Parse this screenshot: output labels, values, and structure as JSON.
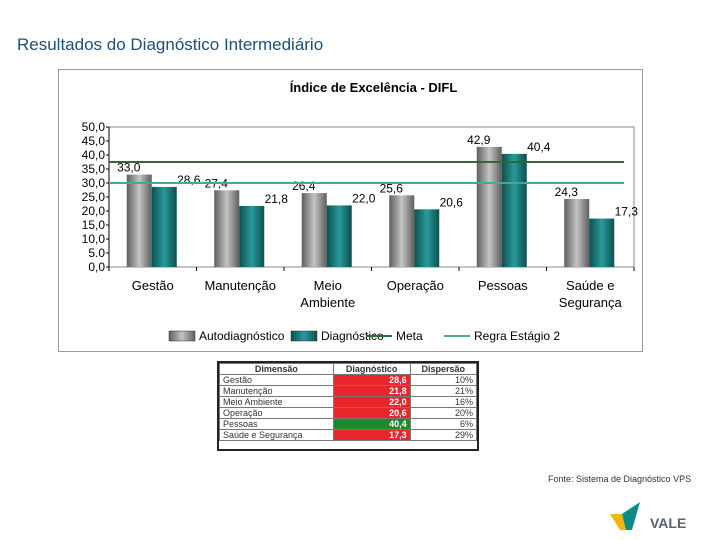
{
  "slide": {
    "title": "Resultados do Diagnóstico Intermediário",
    "source": "Fonte: Sistema de Diagnóstico VPS",
    "logo_text": "VALE"
  },
  "chart_data": {
    "type": "bar",
    "title": "Índice de Excelência - DIFL",
    "categories": [
      "Gestão",
      "Manutenção",
      "Meio Ambiente",
      "Operação",
      "Pessoas",
      "Saúde e Segurança"
    ],
    "category_lines": [
      [
        "Gestão"
      ],
      [
        "Manutenção"
      ],
      [
        "Meio",
        "Ambiente"
      ],
      [
        "Operação"
      ],
      [
        "Pessoas"
      ],
      [
        "Saúde e",
        "Segurança"
      ]
    ],
    "series": [
      {
        "name": "Autodiagnóstico",
        "values": [
          33.0,
          27.4,
          26.4,
          25.6,
          42.9,
          24.3
        ],
        "labels": [
          "33,0",
          "27,4",
          "26,4",
          "25,6",
          "42,9",
          "24,3"
        ],
        "color": "#8c8c8c"
      },
      {
        "name": "Diagnóstico",
        "values": [
          28.6,
          21.8,
          22.0,
          20.6,
          40.4,
          17.3
        ],
        "labels": [
          "28,6",
          "21,8",
          "22,0",
          "20,6",
          "40,4",
          "17,3"
        ],
        "color": "#1f7a7a"
      }
    ],
    "lines": [
      {
        "name": "Meta",
        "value": 37.5,
        "color": "#2e6b2e"
      },
      {
        "name": "Regra Estágio 2",
        "value": 30.0,
        "color": "#4da88a"
      }
    ],
    "ylim": [
      0,
      50
    ],
    "yticks": [
      50.0,
      45.0,
      40.0,
      35.0,
      30.0,
      25.0,
      20.0,
      15.0,
      10.0,
      5.0,
      0.0
    ],
    "ytick_labels": [
      "50,0",
      "45,0",
      "40,0",
      "35,0",
      "30,0",
      "25,0",
      "20,0",
      "15,0",
      "10,0",
      "5.0",
      "0,0"
    ],
    "grid": false,
    "legend_position": "bottom",
    "legend_labels": [
      "Autodiagnóstico",
      "Diagnóstico",
      "Meta",
      "Regra Estágio 2"
    ]
  },
  "table": {
    "headers": [
      "Dimensão",
      "Diagnóstico",
      "Dispersão"
    ],
    "rows": [
      {
        "dimension": "Gestão",
        "diagnostico": "28,6",
        "dispersao": "10%",
        "color": "#e8262b"
      },
      {
        "dimension": "Manutenção",
        "diagnostico": "21,8",
        "dispersao": "21%",
        "color": "#e8262b"
      },
      {
        "dimension": "Meio Ambiente",
        "diagnostico": "22,0",
        "dispersao": "16%",
        "color": "#e8262b"
      },
      {
        "dimension": "Operação",
        "diagnostico": "20,6",
        "dispersao": "20%",
        "color": "#e8262b"
      },
      {
        "dimension": "Pessoas",
        "diagnostico": "40,4",
        "dispersao": "6%",
        "color": "#1d8a2c"
      },
      {
        "dimension": "Saúde e Segurança",
        "diagnostico": "17,3",
        "dispersao": "29%",
        "color": "#e8262b"
      }
    ]
  }
}
